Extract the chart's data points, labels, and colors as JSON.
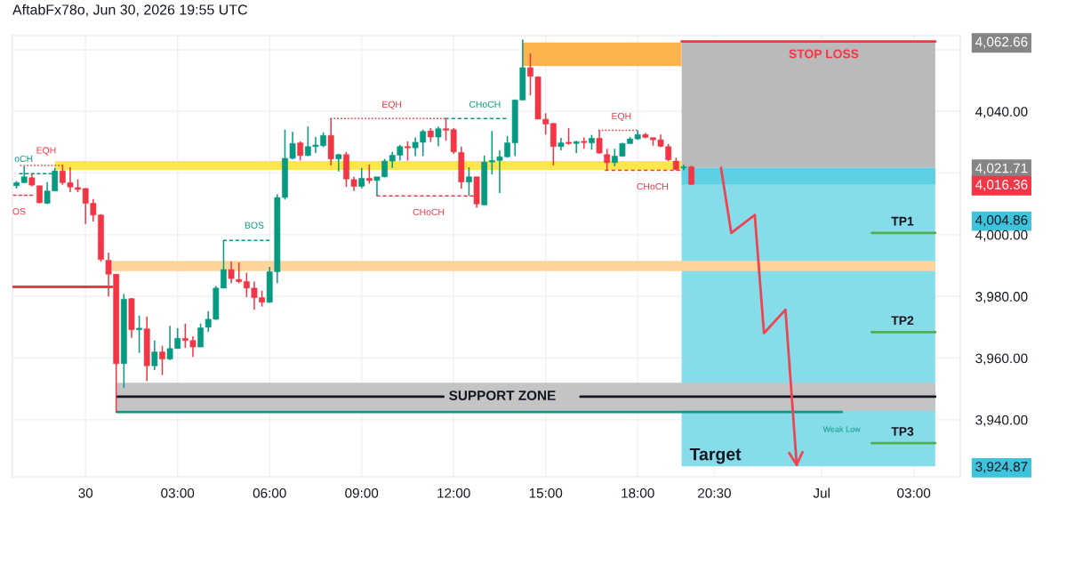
{
  "chart_data": {
    "type": "candlestick",
    "title": "AftabFx78o, Jun 30, 2026 19:55 UTC",
    "x": [
      "2026-06-29T21:45",
      "2026-06-29T22:00",
      "2026-06-29T22:15",
      "2026-06-29T22:30",
      "2026-06-29T22:45",
      "2026-06-29T23:00",
      "2026-06-29T23:15",
      "2026-06-29T23:30",
      "2026-06-29T23:45",
      "2026-06-30T00:00",
      "2026-06-30T00:15",
      "2026-06-30T00:30",
      "2026-06-30T00:45",
      "2026-06-30T01:00",
      "2026-06-30T01:15",
      "2026-06-30T01:30",
      "2026-06-30T01:45",
      "2026-06-30T02:00",
      "2026-06-30T02:15",
      "2026-06-30T02:30",
      "2026-06-30T02:45",
      "2026-06-30T03:00",
      "2026-06-30T03:15",
      "2026-06-30T03:30",
      "2026-06-30T03:45",
      "2026-06-30T04:00",
      "2026-06-30T04:15",
      "2026-06-30T04:30",
      "2026-06-30T04:45",
      "2026-06-30T05:00",
      "2026-06-30T05:15",
      "2026-06-30T05:30",
      "2026-06-30T05:45",
      "2026-06-30T06:00",
      "2026-06-30T06:15",
      "2026-06-30T06:30",
      "2026-06-30T06:45",
      "2026-06-30T07:00",
      "2026-06-30T07:15",
      "2026-06-30T07:30",
      "2026-06-30T07:45",
      "2026-06-30T08:00",
      "2026-06-30T08:15",
      "2026-06-30T08:30",
      "2026-06-30T08:45",
      "2026-06-30T09:00",
      "2026-06-30T09:15",
      "2026-06-30T09:30",
      "2026-06-30T09:45",
      "2026-06-30T10:00",
      "2026-06-30T10:15",
      "2026-06-30T10:30",
      "2026-06-30T10:45",
      "2026-06-30T11:00",
      "2026-06-30T11:15",
      "2026-06-30T11:30",
      "2026-06-30T11:45",
      "2026-06-30T12:00",
      "2026-06-30T12:15",
      "2026-06-30T12:30",
      "2026-06-30T12:45",
      "2026-06-30T13:00",
      "2026-06-30T13:15",
      "2026-06-30T13:30",
      "2026-06-30T13:45",
      "2026-06-30T14:00",
      "2026-06-30T14:15",
      "2026-06-30T14:30",
      "2026-06-30T14:45",
      "2026-06-30T15:00",
      "2026-06-30T15:15",
      "2026-06-30T15:30",
      "2026-06-30T15:45",
      "2026-06-30T16:00",
      "2026-06-30T16:15",
      "2026-06-30T16:30",
      "2026-06-30T16:45",
      "2026-06-30T17:00",
      "2026-06-30T17:15",
      "2026-06-30T17:30",
      "2026-06-30T17:45",
      "2026-06-30T18:00",
      "2026-06-30T18:15",
      "2026-06-30T18:30",
      "2026-06-30T18:45",
      "2026-06-30T19:00",
      "2026-06-30T19:15",
      "2026-06-30T19:30",
      "2026-06-30T19:45"
    ],
    "ohlc": [
      [
        4015.9,
        4017.4,
        4015.0,
        4016.9
      ],
      [
        4016.9,
        4022.2,
        4016.9,
        4018.8
      ],
      [
        4018.5,
        4019.8,
        4015.7,
        4016.1
      ],
      [
        4015.9,
        4015.9,
        4010.2,
        4010.4
      ],
      [
        4010.2,
        4017.1,
        4009.9,
        4014.2
      ],
      [
        4014.2,
        4021.7,
        4014.2,
        4020.7
      ],
      [
        4020.7,
        4022.8,
        4016.2,
        4016.9
      ],
      [
        4016.9,
        4021.9,
        4013.8,
        4015.5
      ],
      [
        4015.3,
        4018.0,
        4013.8,
        4014.7
      ],
      [
        4015.0,
        4015.2,
        4003.5,
        4010.2
      ],
      [
        4010.2,
        4011.6,
        4004.3,
        4006.4
      ],
      [
        4006.4,
        4006.7,
        3991.3,
        3992.0
      ],
      [
        3991.7,
        3994.2,
        3980.0,
        3987.2
      ],
      [
        3987.2,
        3987.2,
        3942.5,
        3958.2
      ],
      [
        3958.2,
        3980.8,
        3950.3,
        3979.1
      ],
      [
        3979.3,
        3979.5,
        3966.6,
        3969.2
      ],
      [
        3969.2,
        3973.8,
        3961.7,
        3969.7
      ],
      [
        3969.5,
        3973.5,
        3952.5,
        3957.5
      ],
      [
        3957.5,
        3965.7,
        3956.1,
        3962.0
      ],
      [
        3962.0,
        3964.0,
        3954.5,
        3959.7
      ],
      [
        3959.7,
        3970.5,
        3959.4,
        3963.1
      ],
      [
        3963.1,
        3969.7,
        3963.1,
        3966.4
      ],
      [
        3966.4,
        3971.2,
        3963.3,
        3965.7
      ],
      [
        3965.7,
        3967.1,
        3960.4,
        3963.6
      ],
      [
        3963.6,
        3971.2,
        3963.6,
        3969.8
      ],
      [
        3970.0,
        3975.2,
        3968.5,
        3972.6
      ],
      [
        3972.6,
        3983.4,
        3972.4,
        3982.7
      ],
      [
        3982.7,
        3998.2,
        3982.7,
        3988.7
      ],
      [
        3988.7,
        3991.3,
        3984.3,
        3985.8
      ],
      [
        3985.5,
        3991.0,
        3984.3,
        3984.8
      ],
      [
        3984.8,
        3987.7,
        3979.8,
        3982.7
      ],
      [
        3982.7,
        3984.8,
        3975.7,
        3979.6
      ],
      [
        3979.6,
        3981.9,
        3976.7,
        3978.1
      ],
      [
        3978.1,
        3989.6,
        3977.9,
        3988.0
      ],
      [
        3988.0,
        4013.1,
        3984.3,
        4012.1
      ],
      [
        4012.1,
        4034.1,
        4011.4,
        4024.8
      ],
      [
        4024.8,
        4033.4,
        4024.4,
        4029.6
      ],
      [
        4029.8,
        4030.3,
        4024.1,
        4025.7
      ],
      [
        4025.7,
        4035.1,
        4025.5,
        4028.6
      ],
      [
        4028.6,
        4031.7,
        4026.5,
        4029.1
      ],
      [
        4028.9,
        4033.2,
        4028.4,
        4032.2
      ],
      [
        4032.2,
        4037.8,
        4022.5,
        4024.6
      ],
      [
        4024.6,
        4026.2,
        4020.5,
        4026.0
      ],
      [
        4026.0,
        4026.9,
        4015.5,
        4018.1
      ],
      [
        4017.9,
        4018.8,
        4014.2,
        4015.7
      ],
      [
        4015.7,
        4021.7,
        4015.0,
        4018.3
      ],
      [
        4018.3,
        4022.8,
        4016.6,
        4017.6
      ],
      [
        4017.6,
        4018.8,
        4012.6,
        4018.8
      ],
      [
        4018.8,
        4024.6,
        4018.6,
        4023.9
      ],
      [
        4023.9,
        4026.9,
        4021.7,
        4025.8
      ],
      [
        4025.8,
        4029.2,
        4024.1,
        4028.6
      ],
      [
        4028.6,
        4030.3,
        4024.1,
        4028.2
      ],
      [
        4028.2,
        4031.6,
        4025.5,
        4030.0
      ],
      [
        4030.0,
        4034.1,
        4025.5,
        4033.5
      ],
      [
        4033.7,
        4034.6,
        4030.1,
        4031.7
      ],
      [
        4031.7,
        4035.1,
        4028.7,
        4034.4
      ],
      [
        4034.4,
        4037.8,
        4030.5,
        4033.9
      ],
      [
        4034.1,
        4034.6,
        4026.3,
        4026.9
      ],
      [
        4026.7,
        4028.6,
        4015.0,
        4017.1
      ],
      [
        4017.1,
        4021.9,
        4012.6,
        4018.8
      ],
      [
        4018.8,
        4018.8,
        4008.8,
        4010.0
      ],
      [
        4009.7,
        4025.7,
        4009.5,
        4023.6
      ],
      [
        4023.6,
        4033.7,
        4019.6,
        4024.1
      ],
      [
        4024.1,
        4027.4,
        4013.5,
        4025.3
      ],
      [
        4025.3,
        4032.0,
        4025.0,
        4029.8
      ],
      [
        4029.8,
        4043.9,
        4025.5,
        4043.7
      ],
      [
        4043.7,
        4063.3,
        4043.7,
        4054.2
      ],
      [
        4054.2,
        4058.8,
        4045.2,
        4051.4
      ],
      [
        4051.2,
        4051.4,
        4037.5,
        4037.5
      ],
      [
        4037.5,
        4039.4,
        4032.5,
        4035.9
      ],
      [
        4036.1,
        4036.3,
        4022.5,
        4028.6
      ],
      [
        4028.6,
        4031.4,
        4027.4,
        4029.8
      ],
      [
        4030.0,
        4034.6,
        4029.2,
        4029.6
      ],
      [
        4029.6,
        4030.5,
        4026.5,
        4030.2
      ],
      [
        4030.3,
        4031.6,
        4027.9,
        4029.9
      ],
      [
        4029.8,
        4032.4,
        4027.6,
        4031.3
      ],
      [
        4031.3,
        4033.9,
        4026.3,
        4026.5
      ],
      [
        4026.0,
        4027.9,
        4020.9,
        4023.4
      ],
      [
        4023.4,
        4027.9,
        4022.2,
        4025.5
      ],
      [
        4025.5,
        4029.8,
        4025.3,
        4029.6
      ],
      [
        4029.6,
        4031.7,
        4029.4,
        4031.1
      ],
      [
        4031.1,
        4033.9,
        4030.8,
        4032.5
      ],
      [
        4032.5,
        4033.0,
        4031.3,
        4031.6
      ],
      [
        4031.5,
        4031.5,
        4028.9,
        4030.8
      ],
      [
        4030.8,
        4032.5,
        4028.4,
        4028.7
      ],
      [
        4028.6,
        4029.5,
        4023.9,
        4024.3
      ],
      [
        4023.9,
        4025.0,
        4020.9,
        4021.2
      ],
      [
        4021.7,
        4022.7,
        4020.9,
        4022.0
      ],
      [
        4022.0,
        4022.4,
        4016.1,
        4016.36
      ]
    ],
    "colors": [
      "#089981",
      "#089981",
      "#f23645",
      "#f23645",
      "#089981",
      "#089981",
      "#f23645",
      "#f23645",
      "#f23645",
      "#f23645",
      "#f23645",
      "#f23645",
      "#f23645",
      "#f23645",
      "#089981",
      "#f23645",
      "#089981",
      "#f23645",
      "#089981",
      "#f23645",
      "#089981",
      "#089981",
      "#f23645",
      "#f23645",
      "#089981",
      "#089981",
      "#089981",
      "#089981",
      "#f23645",
      "#f23645",
      "#f23645",
      "#f23645",
      "#f23645",
      "#089981",
      "#089981",
      "#089981",
      "#089981",
      "#f23645",
      "#089981",
      "#089981",
      "#089981",
      "#f23645",
      "#089981",
      "#f23645",
      "#f23645",
      "#089981",
      "#f23645",
      "#089981",
      "#089981",
      "#089981",
      "#089981",
      "#f23645",
      "#089981",
      "#089981",
      "#f23645",
      "#089981",
      "#f23645",
      "#f23645",
      "#f23645",
      "#089981",
      "#f23645",
      "#089981",
      "#089981",
      "#089981",
      "#089981",
      "#089981",
      "#089981",
      "#f23645",
      "#f23645",
      "#f23645",
      "#f23645",
      "#089981",
      "#f23645",
      "#089981",
      "#f23645",
      "#089981",
      "#f23645",
      "#f23645",
      "#089981",
      "#089981",
      "#089981",
      "#089981",
      "#f23645",
      "#f23645",
      "#f23645",
      "#f23645",
      "#f23645",
      "#089981",
      "#f23645"
    ],
    "series": [
      {
        "type": "area",
        "x": [
          "2026-06-29T23:00",
          "2026-06-30T19:26"
        ],
        "values": [
          null,
          null
        ],
        "lower": [
          4021.0,
          4021.0
        ],
        "upper": [
          4023.9,
          4023.9
        ],
        "color": "#fbe64b"
      },
      {
        "type": "area",
        "x": [
          "2026-06-30T14:15",
          "2026-06-30T19:26"
        ],
        "values": [
          null,
          null
        ],
        "lower": [
          4054.7,
          4054.7
        ],
        "upper": [
          4062.4,
          4062.4
        ],
        "color": "#fdb44f"
      },
      {
        "type": "area",
        "x": [
          "2026-06-30T19:26",
          "2026-07-01T03:42"
        ],
        "values": [
          null,
          null
        ],
        "lower": [
          4021.71,
          4021.71
        ],
        "upper": [
          4062.66,
          4062.66
        ],
        "color": "#bababa"
      },
      {
        "type": "area",
        "x": [
          "2026-06-30T19:26",
          "2026-07-01T03:42"
        ],
        "values": [
          null,
          null
        ],
        "lower": [
          3924.87,
          3924.87
        ],
        "upper": [
          4021.71,
          4021.71
        ],
        "color": "#86dce9"
      },
      {
        "type": "area",
        "x": [
          "2026-06-30T19:26",
          "2026-07-01T03:42"
        ],
        "values": [
          null,
          null
        ],
        "lower": [
          4016.36,
          4016.36
        ],
        "upper": [
          4021.71,
          4021.71
        ],
        "color": "#5ed0e3"
      },
      {
        "type": "area",
        "x": [
          "2026-06-30T00:52",
          "2026-07-01T03:42"
        ],
        "values": [
          null,
          null
        ],
        "lower": [
          3988.2,
          3988.2
        ],
        "upper": [
          3991.5,
          3991.5
        ],
        "color": "#fdd49a"
      },
      {
        "type": "area",
        "x": [
          "2026-06-30T01:01",
          "2026-07-01T03:42"
        ],
        "values": [
          null,
          null
        ],
        "lower": [
          3942.9,
          3942.9
        ],
        "upper": [
          3952.0,
          3952.0
        ],
        "color": "#c4c4c4"
      },
      {
        "type": "line",
        "x": [
          "2026-06-29T21:52",
          "2026-06-29T23:16"
        ],
        "values": [
          4022.5,
          4022.5
        ],
        "color": "#f23645",
        "line_style": "dotted"
      },
      {
        "type": "line",
        "x": [
          "2026-06-29T21:50",
          "2026-06-29T22:55"
        ],
        "values": [
          4019.8,
          4019.8
        ],
        "color": "#089981",
        "line_style": "dashed"
      },
      {
        "type": "line",
        "x": [
          "2026-06-29T21:38",
          "2026-06-29T22:17"
        ],
        "values": [
          4012.8,
          4012.8
        ],
        "color": "#f23645",
        "line_style": "dashed"
      },
      {
        "type": "line",
        "x": [
          "2026-06-29T21:38",
          "2026-06-30T00:52"
        ],
        "values": [
          3983.1,
          3983.1
        ],
        "color": "#f23645",
        "line_style": "solid"
      },
      {
        "type": "line",
        "x": [
          "2026-06-30T04:29",
          "2026-06-30T06:00"
        ],
        "values": [
          3998.2,
          3998.2
        ],
        "color": "#089981",
        "line_style": "dashed"
      },
      {
        "type": "line",
        "x": [
          "2026-06-30T07:59",
          "2026-06-30T11:43"
        ],
        "values": [
          4037.7,
          4037.7
        ],
        "color": "#f23645",
        "line_style": "dotted"
      },
      {
        "type": "line",
        "x": [
          "2026-06-30T11:43",
          "2026-06-30T13:43"
        ],
        "values": [
          4037.7,
          4037.7
        ],
        "color": "#089981",
        "line_style": "dashed"
      },
      {
        "type": "line",
        "x": [
          "2026-06-30T09:29",
          "2026-06-30T12:39"
        ],
        "values": [
          4012.6,
          4012.6
        ],
        "color": "#f23645",
        "line_style": "dashed"
      },
      {
        "type": "line",
        "x": [
          "2026-06-30T16:43",
          "2026-06-30T17:59"
        ],
        "values": [
          4033.9,
          4033.9
        ],
        "color": "#f23645",
        "line_style": "dotted"
      },
      {
        "type": "line",
        "x": [
          "2026-06-30T16:56",
          "2026-06-30T19:23"
        ],
        "values": [
          4020.9,
          4020.9
        ],
        "color": "#f23645",
        "line_style": "dashed"
      },
      {
        "type": "line",
        "x": [
          "2026-06-30T01:01",
          "2026-06-30T11:40"
        ],
        "values": [
          3947.5,
          3947.5
        ],
        "color": "#131722",
        "line_style": "solid"
      },
      {
        "type": "line",
        "x": [
          "2026-06-30T16:08",
          "2026-07-01T03:42"
        ],
        "values": [
          3947.5,
          3947.5
        ],
        "color": "#131722",
        "line_style": "solid"
      },
      {
        "type": "line",
        "x": [
          "2026-06-30T01:01",
          "2026-07-01T00:39"
        ],
        "values": [
          3942.5,
          3942.5
        ],
        "color": "#089981",
        "line_style": "solid"
      },
      {
        "type": "line",
        "x": [
          "2026-06-30T19:26",
          "2026-07-01T03:42"
        ],
        "values": [
          4062.66,
          4062.66
        ],
        "color": "#f23645",
        "line_style": "solid"
      },
      {
        "type": "line",
        "x": [
          "2026-07-01T01:38",
          "2026-07-01T03:42"
        ],
        "values": [
          4000.6,
          4000.6
        ],
        "color": "#4caf50",
        "line_style": "solid"
      },
      {
        "type": "line",
        "x": [
          "2026-07-01T01:38",
          "2026-07-01T03:42"
        ],
        "values": [
          3968.4,
          3968.4
        ],
        "color": "#4caf50",
        "line_style": "solid"
      },
      {
        "type": "line",
        "x": [
          "2026-07-01T01:38",
          "2026-07-01T03:42"
        ],
        "values": [
          3932.4,
          3932.4
        ],
        "color": "#4caf50",
        "line_style": "solid"
      },
      {
        "type": "line",
        "x": [
          "2026-06-30T20:43",
          "2026-06-30T21:03",
          "2026-06-30T21:49",
          "2026-06-30T22:07",
          "2026-06-30T22:49",
          "2026-06-30T23:11"
        ],
        "values": [
          4021.7,
          4000.6,
          4006.4,
          3968.1,
          3975.7,
          3925.4
        ],
        "color": "#ee4351",
        "line_style": "solid"
      }
    ],
    "annotations": [
      {
        "text": "EQH",
        "x": "2026-06-29T22:43",
        "y": 4022.5
      },
      {
        "text": "oCH",
        "x": "2026-06-29T21:59",
        "y": 4019.8
      },
      {
        "text": "OS",
        "x": "2026-06-29T21:50",
        "y": 4012.8
      },
      {
        "text": "BOS",
        "x": "2026-06-30T05:30",
        "y": 3998.2
      },
      {
        "text": "EQH",
        "x": "2026-06-30T09:59",
        "y": 4037.7
      },
      {
        "text": "CHoCH",
        "x": "2026-06-30T13:01",
        "y": 4037.7
      },
      {
        "text": "CHoCH",
        "x": "2026-06-30T11:11",
        "y": 4012.6
      },
      {
        "text": "EQH",
        "x": "2026-06-30T17:28",
        "y": 4033.9
      },
      {
        "text": "CHoCH",
        "x": "2026-06-30T18:29",
        "y": 4020.9
      },
      {
        "text": "STOP LOSS",
        "x": "2026-07-01T00:04",
        "y": 4062.66
      },
      {
        "text": "TP1",
        "x": "2026-07-01T02:38",
        "y": 4000.6
      },
      {
        "text": "TP2",
        "x": "2026-07-01T02:38",
        "y": 3968.4
      },
      {
        "text": "TP3",
        "x": "2026-07-01T02:38",
        "y": 3932.4
      },
      {
        "text": "Weak Low",
        "x": "2026-07-01T00:39",
        "y": 3942.5
      },
      {
        "text": "Target",
        "x": "2026-06-30T20:32",
        "y": 3924.87
      },
      {
        "text": "SUPPORT ZONE",
        "x": "2026-06-30T11:40",
        "y": 3947.5
      }
    ],
    "xlim": [
      "2026-06-29T21:37",
      "2026-07-01T04:31"
    ],
    "xticks": [
      {
        "value": "2026-06-30T00:00",
        "label": "30"
      },
      {
        "value": "2026-06-30T03:00",
        "label": "03:00"
      },
      {
        "value": "2026-06-30T06:00",
        "label": "06:00"
      },
      {
        "value": "2026-06-30T09:00",
        "label": "09:00"
      },
      {
        "value": "2026-06-30T12:00",
        "label": "12:00"
      },
      {
        "value": "2026-06-30T15:00",
        "label": "15:00"
      },
      {
        "value": "2026-06-30T18:00",
        "label": "18:00"
      },
      {
        "value": "2026-06-30T20:30",
        "label": "20:30"
      },
      {
        "value": "2026-07-01T00:00",
        "label": "Jul"
      },
      {
        "value": "2026-07-01T03:00",
        "label": "03:00"
      }
    ],
    "ylim": [
      3921.5,
      4064.6
    ],
    "yticks": [
      {
        "value": 4062.66,
        "label": "4,062.66"
      },
      {
        "value": 4060,
        "label": null
      },
      {
        "value": 4040,
        "label": "4,040.00"
      },
      {
        "value": 4021.71,
        "label": "4,021.71"
      },
      {
        "value": 4020,
        "label": null
      },
      {
        "value": 4016.36,
        "label": "4,016.36"
      },
      {
        "value": 4004.86,
        "label": "4,004.86"
      },
      {
        "value": 4000,
        "label": "4,000.00"
      },
      {
        "value": 3980,
        "label": "3,980.00"
      },
      {
        "value": 3960,
        "label": "3,960.00"
      },
      {
        "value": 3940,
        "label": "3,940.00"
      },
      {
        "value": 3924.87,
        "label": "3,924.87"
      }
    ],
    "grid": true
  }
}
